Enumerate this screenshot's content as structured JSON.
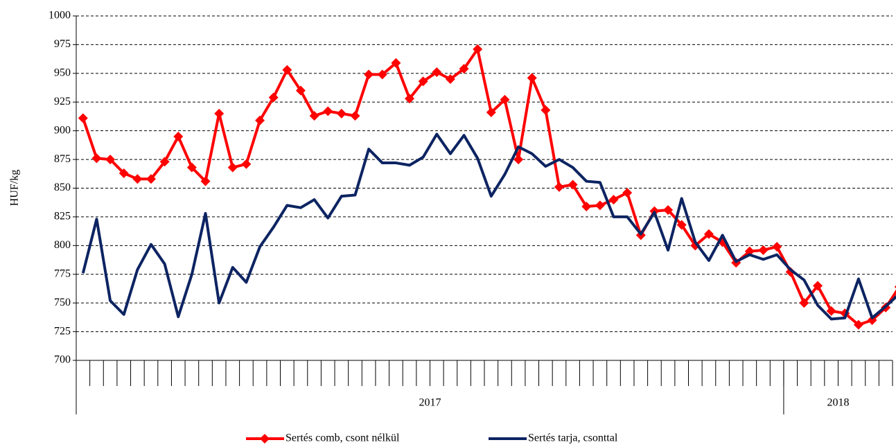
{
  "chart_data": {
    "type": "line",
    "y_label": "HUF/kg",
    "categories": [
      null,
      null,
      null,
      null,
      null,
      null,
      null,
      null,
      null,
      null,
      null,
      null,
      null,
      null,
      null,
      null,
      null,
      null,
      null,
      null,
      null,
      null,
      null,
      null,
      null,
      null,
      null,
      null,
      null,
      null,
      null,
      null,
      null,
      null,
      null,
      null,
      null,
      null,
      null,
      null,
      null,
      null,
      null,
      null,
      null,
      null,
      null,
      null,
      null,
      null,
      null,
      null,
      null,
      null,
      null,
      null,
      null,
      null,
      null,
      null,
      null
    ],
    "x_groups": [
      {
        "label": "2017",
        "count": 52
      },
      {
        "label": "2018",
        "count": 9
      }
    ],
    "series": [
      {
        "name": "Sertés comb, csont nélkül",
        "color": "#ff0000",
        "marker": "diamond",
        "values": [
          911,
          876,
          875,
          863,
          858,
          858,
          873,
          895,
          868,
          856,
          915,
          868,
          871,
          909,
          929,
          953,
          935,
          913,
          917,
          915,
          913,
          949,
          949,
          959,
          928,
          943,
          951,
          945,
          954,
          971,
          916,
          927,
          875,
          946,
          918,
          851,
          853,
          834,
          835,
          840,
          846,
          809,
          830,
          831,
          818,
          800,
          810,
          803,
          785,
          795,
          796,
          799,
          777,
          750,
          765,
          743,
          741,
          731,
          735,
          746,
          764
        ]
      },
      {
        "name": "Sertés tarja, csonttal",
        "color": "#0d2462",
        "marker": null,
        "values": [
          776,
          823,
          752,
          740,
          779,
          801,
          784,
          738,
          775,
          828,
          750,
          781,
          768,
          799,
          816,
          835,
          833,
          840,
          824,
          843,
          844,
          884,
          872,
          872,
          870,
          877,
          897,
          880,
          896,
          876,
          843,
          862,
          886,
          880,
          869,
          875,
          868,
          856,
          855,
          825,
          825,
          810,
          829,
          796,
          841,
          803,
          787,
          809,
          786,
          792,
          788,
          792,
          779,
          770,
          748,
          736,
          737,
          771,
          737,
          747,
          758
        ]
      }
    ],
    "ylim": [
      700,
      1000
    ],
    "yticks": [
      700,
      725,
      750,
      775,
      800,
      825,
      850,
      875,
      900,
      925,
      950,
      975,
      1000
    ],
    "grid": true,
    "legend": "bottom"
  }
}
